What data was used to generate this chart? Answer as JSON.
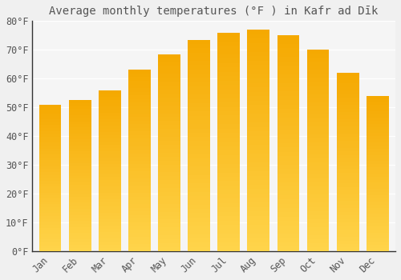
{
  "title": "Average monthly temperatures (°F ) in Kafr ad Dīk",
  "months": [
    "Jan",
    "Feb",
    "Mar",
    "Apr",
    "May",
    "Jun",
    "Jul",
    "Aug",
    "Sep",
    "Oct",
    "Nov",
    "Dec"
  ],
  "values": [
    51,
    52.5,
    56,
    63,
    68.5,
    73.5,
    76,
    77,
    75,
    70,
    62,
    54
  ],
  "bar_color_bottom": "#FFD44A",
  "bar_color_top": "#F5A800",
  "background_color": "#F0F0F0",
  "plot_bg_color": "#F5F5F5",
  "grid_color": "#FFFFFF",
  "text_color": "#555555",
  "ylim": [
    0,
    80
  ],
  "yticks": [
    0,
    10,
    20,
    30,
    40,
    50,
    60,
    70,
    80
  ],
  "ytick_labels": [
    "0°F",
    "10°F",
    "20°F",
    "30°F",
    "40°F",
    "50°F",
    "60°F",
    "70°F",
    "80°F"
  ],
  "title_fontsize": 10,
  "tick_fontsize": 8.5,
  "bar_width": 0.75
}
